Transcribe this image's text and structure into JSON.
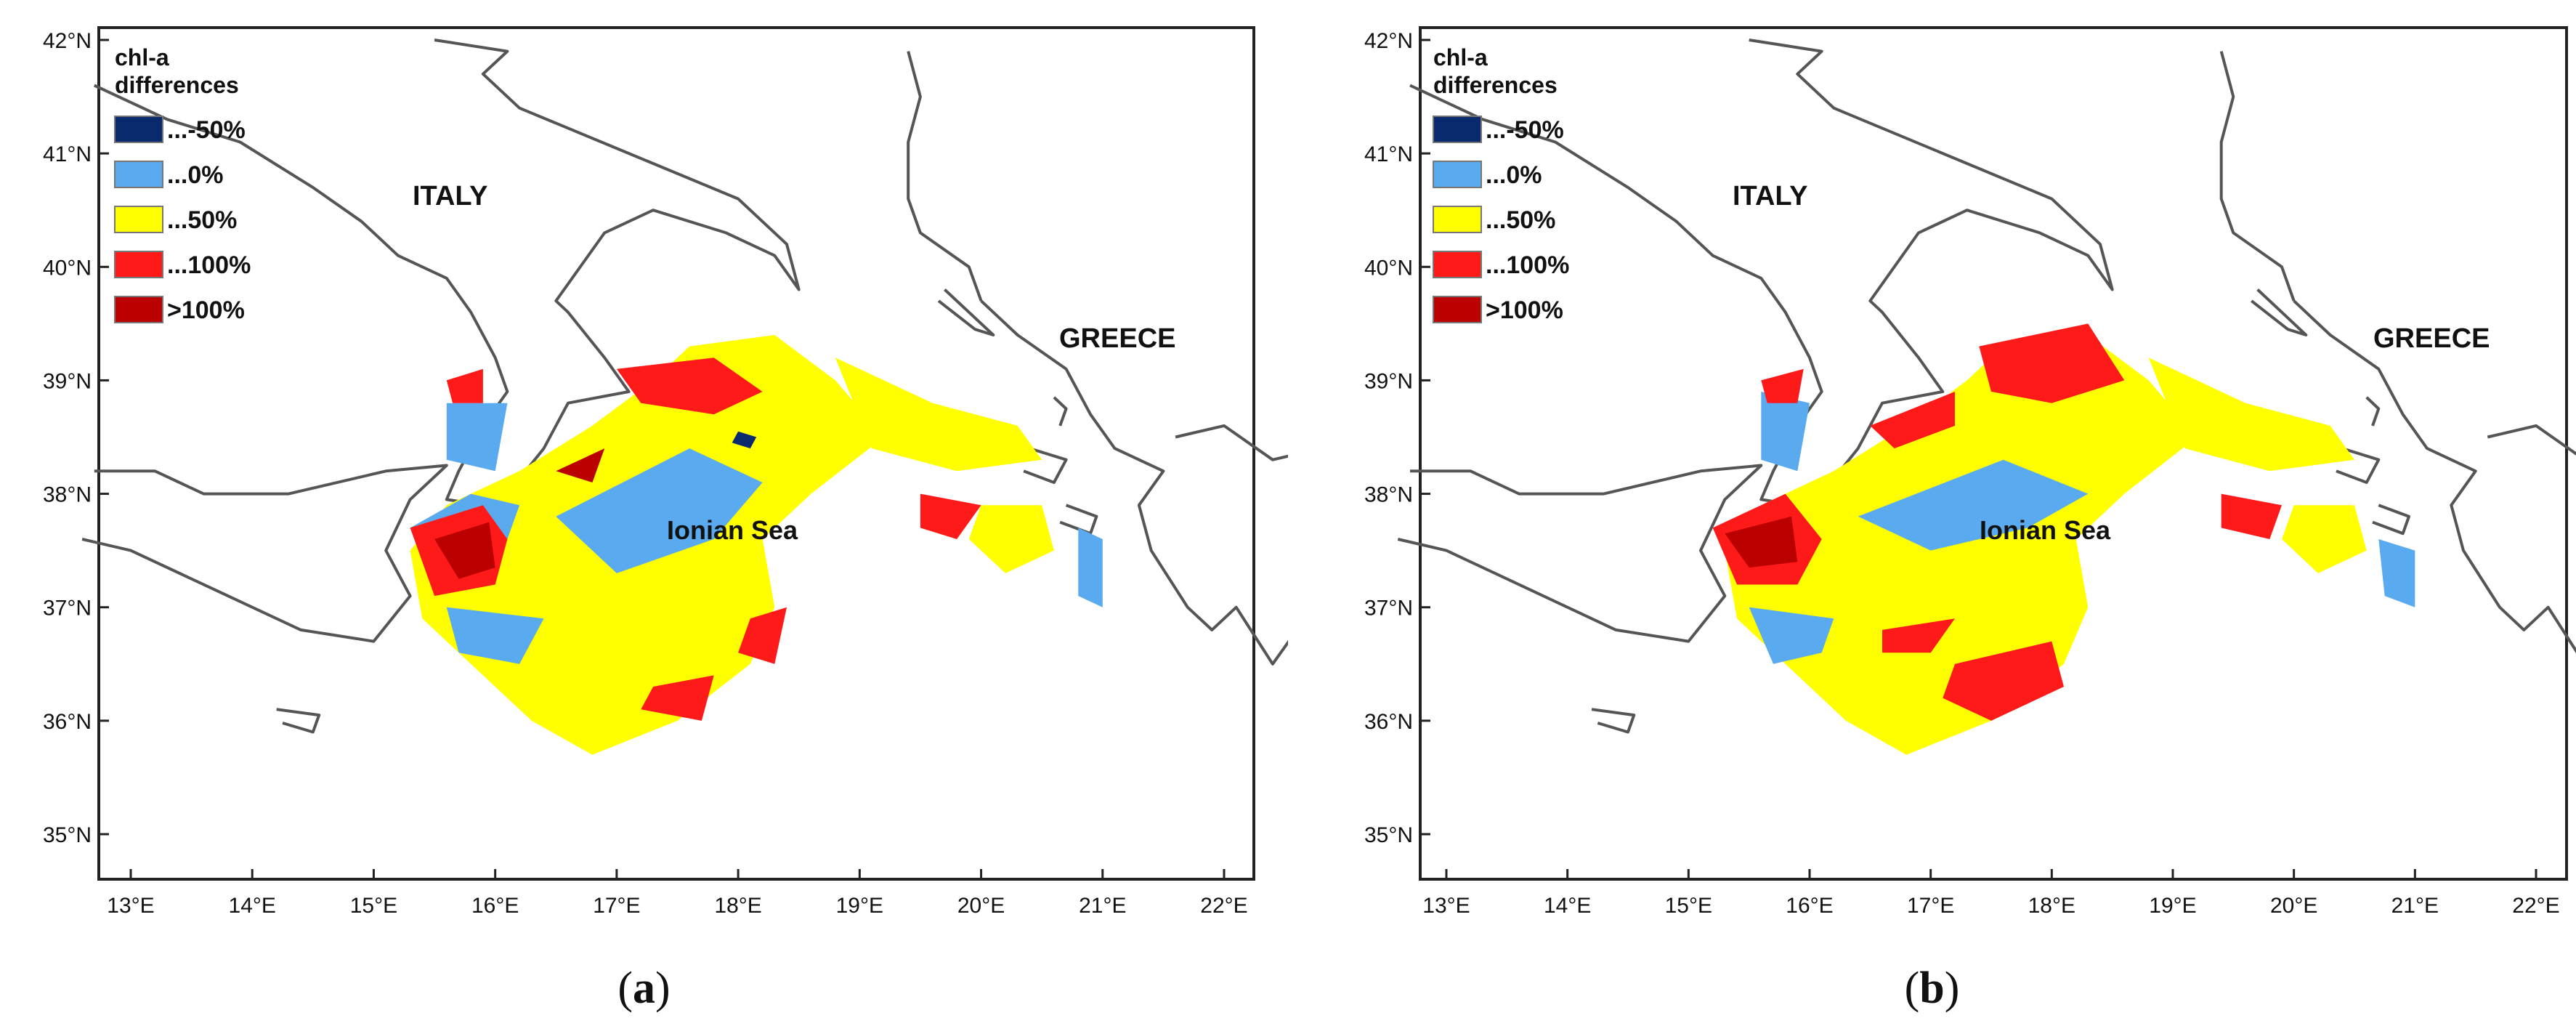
{
  "legend": {
    "title_line1": "chl-a",
    "title_line2": "differences",
    "items": [
      {
        "label": "...-50%",
        "color": "#0a2a6e"
      },
      {
        "label": "...0%",
        "color": "#5aaaf0"
      },
      {
        "label": "...50%",
        "color": "#ffff00"
      },
      {
        "label": "...100%",
        "color": "#ff1a1a"
      },
      {
        "label": ">100%",
        "color": "#bb0000"
      }
    ]
  },
  "map_labels": {
    "italy": "ITALY",
    "greece": "GREECE",
    "sea": "Ionian Sea"
  },
  "axes": {
    "lat_ticks": [
      "42°N",
      "41°N",
      "40°N",
      "39°N",
      "38°N",
      "37°N",
      "36°N",
      "35°N"
    ],
    "lon_ticks": [
      "13°E",
      "14°E",
      "15°E",
      "16°E",
      "17°E",
      "18°E",
      "19°E",
      "20°E",
      "21°E",
      "22°E"
    ]
  },
  "panels": [
    {
      "caption_open": "(",
      "caption_letter": "a",
      "caption_close": ")"
    },
    {
      "caption_open": "(",
      "caption_letter": "b",
      "caption_close": ")"
    }
  ]
}
